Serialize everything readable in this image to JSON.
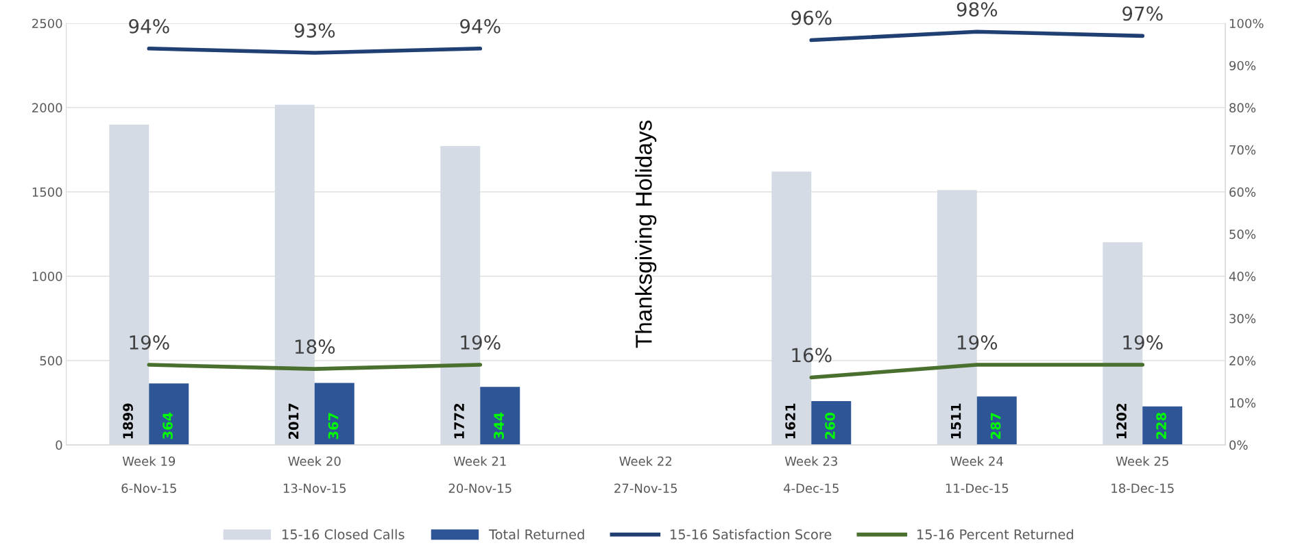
{
  "chart_data": {
    "type": "bar",
    "categories": [
      "Week 19\n6-Nov-15",
      "Week 20\n13-Nov-15",
      "Week 21\n20-Nov-15",
      "Week 22\n27-Nov-15",
      "Week 23\n4-Dec-15",
      "Week 24\n11-Dec-15",
      "Week 25\n18-Dec-15"
    ],
    "series": [
      {
        "name": "15-16 Closed Calls",
        "color": "#d5dbe5",
        "values": [
          1899,
          2017,
          1772,
          null,
          1621,
          1511,
          1202
        ],
        "value_labels": [
          "1899",
          "2017",
          "1772",
          null,
          "1621",
          "1511",
          "1202"
        ]
      },
      {
        "name": "Total Returned",
        "color": "#2e5596",
        "values": [
          364,
          367,
          344,
          null,
          260,
          287,
          228
        ],
        "value_labels": [
          "364",
          "367",
          "344",
          null,
          "260",
          "287",
          "228"
        ]
      },
      {
        "name": "15-16 Satisfaction Score",
        "type": "line",
        "axis": "y2",
        "color": "#203f73",
        "values": [
          94,
          93,
          94,
          null,
          96,
          98,
          97
        ],
        "value_labels": [
          "94%",
          "93%",
          "94%",
          null,
          "96%",
          "98%",
          "97%"
        ]
      },
      {
        "name": "15-16 Percent Returned",
        "type": "line",
        "axis": "y2",
        "color": "#4a7030",
        "values": [
          19,
          18,
          19,
          null,
          16,
          19,
          19
        ],
        "value_labels": [
          "19%",
          "18%",
          "19%",
          null,
          "16%",
          "19%",
          "19%"
        ]
      }
    ],
    "ylim": [
      0,
      2500
    ],
    "yticks": [
      0,
      500,
      1000,
      1500,
      2000,
      2500
    ],
    "y2lim": [
      0,
      100
    ],
    "y2ticks": [
      {
        "value": 0,
        "label": "0%"
      },
      {
        "value": 10,
        "label": "10%"
      },
      {
        "value": 20,
        "label": "20%"
      },
      {
        "value": 30,
        "label": "30%"
      },
      {
        "value": 40,
        "label": "40%"
      },
      {
        "value": 50,
        "label": "50%"
      },
      {
        "value": 60,
        "label": "60%"
      },
      {
        "value": 70,
        "label": "70%"
      },
      {
        "value": 80,
        "label": "80%"
      },
      {
        "value": 90,
        "label": "90%"
      },
      {
        "value": 100,
        "label": "100%"
      }
    ],
    "annotations": [
      "Thanksgiving Holidays"
    ],
    "grid": "y",
    "legend": "bottom"
  }
}
